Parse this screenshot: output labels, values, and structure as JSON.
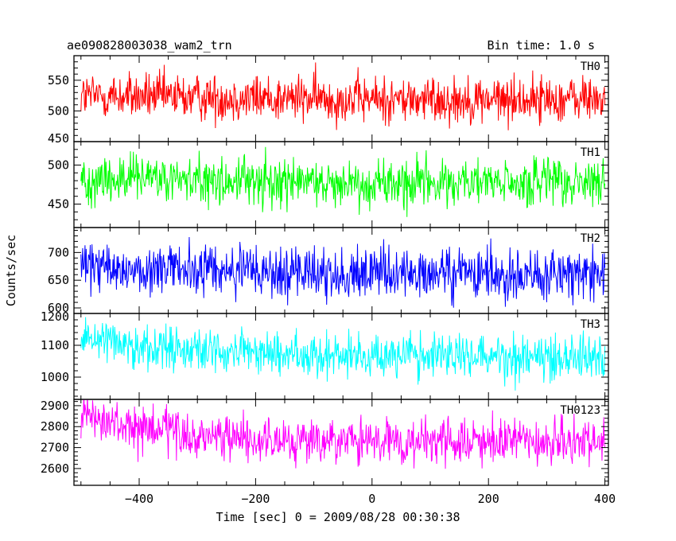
{
  "chart_data": {
    "type": "line",
    "title": "ae090828003038_wam2_trn",
    "subtitle": "Bin time: 1.0 s",
    "xlabel": "Time [sec] 0 = 2009/08/28 00:30:38",
    "ylabel": "Counts/sec",
    "xlim": [
      -512,
      406
    ],
    "x_ticks": [
      -400,
      -200,
      0,
      200,
      400
    ],
    "x_tick_labels": [
      "−400",
      "−200",
      "0",
      "200",
      "400"
    ],
    "bin_time_s": 1.0,
    "x_start": -500,
    "x_end": 400,
    "grid": false,
    "legend": "none",
    "panels": [
      {
        "name": "TH0",
        "color": "#ff0000",
        "ylim": [
          450,
          590
        ],
        "y_ticks": [
          450,
          500,
          550
        ],
        "y_tick_labels": [
          "450",
          "500",
          "550"
        ],
        "mean": 520,
        "spread": 60,
        "trend": [
          [
            -500,
            525
          ],
          [
            -300,
            522
          ],
          [
            -100,
            520
          ],
          [
            100,
            518
          ],
          [
            300,
            519
          ],
          [
            400,
            520
          ]
        ]
      },
      {
        "name": "TH1",
        "color": "#00ff00",
        "ylim": [
          420,
          530
        ],
        "y_ticks": [
          450,
          500
        ],
        "y_tick_labels": [
          "450",
          "500"
        ],
        "mean": 478,
        "spread": 50,
        "trend": [
          [
            -500,
            482
          ],
          [
            -300,
            480
          ],
          [
            -100,
            478
          ],
          [
            100,
            477
          ],
          [
            300,
            476
          ],
          [
            400,
            477
          ]
        ]
      },
      {
        "name": "TH2",
        "color": "#0000ff",
        "ylim": [
          590,
          745
        ],
        "y_ticks": [
          600,
          650,
          700
        ],
        "y_tick_labels": [
          "600",
          "650",
          "700"
        ],
        "mean": 665,
        "spread": 75,
        "trend": [
          [
            -500,
            672
          ],
          [
            -300,
            668
          ],
          [
            -100,
            662
          ],
          [
            100,
            660
          ],
          [
            300,
            660
          ],
          [
            400,
            662
          ]
        ]
      },
      {
        "name": "TH3",
        "color": "#00ffff",
        "ylim": [
          930,
          1200
        ],
        "y_ticks": [
          1000,
          1100,
          1200
        ],
        "y_tick_labels": [
          "1000",
          "1100",
          "1200"
        ],
        "mean": 1075,
        "spread": 110,
        "trend": [
          [
            -500,
            1135
          ],
          [
            -400,
            1100
          ],
          [
            -300,
            1085
          ],
          [
            -100,
            1070
          ],
          [
            100,
            1068
          ],
          [
            300,
            1066
          ],
          [
            400,
            1065
          ]
        ]
      },
      {
        "name": "TH0123",
        "color": "#ff00ff",
        "ylim": [
          2520,
          2930
        ],
        "y_ticks": [
          2600,
          2700,
          2800,
          2900
        ],
        "y_tick_labels": [
          "2600",
          "2700",
          "2800",
          "2900"
        ],
        "mean": 2740,
        "spread": 170,
        "trend": [
          [
            -500,
            2840
          ],
          [
            -400,
            2790
          ],
          [
            -300,
            2750
          ],
          [
            -100,
            2725
          ],
          [
            100,
            2725
          ],
          [
            300,
            2725
          ],
          [
            400,
            2720
          ]
        ]
      }
    ]
  }
}
